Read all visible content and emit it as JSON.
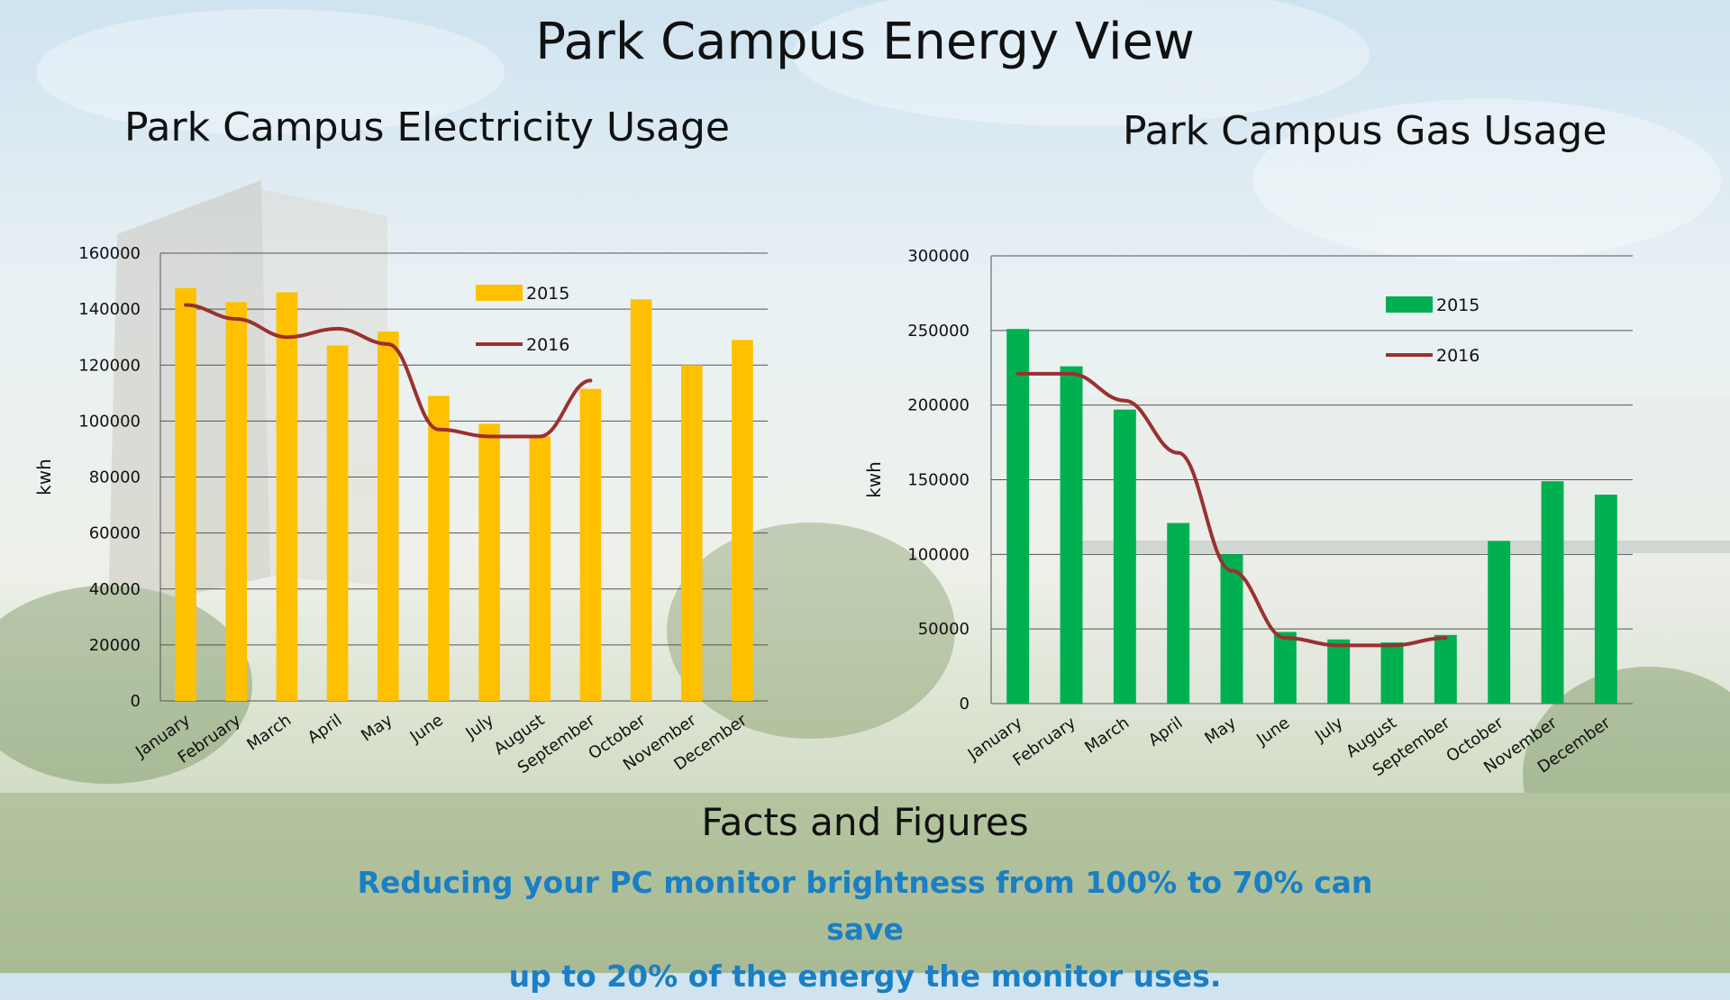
{
  "page_title": "Park Campus Energy View",
  "colors": {
    "electricity_2015": "#ffc000",
    "gas_2015": "#00b050",
    "line_2016": "#9b3030",
    "facts_text": "#1a7fc4"
  },
  "chart_data": [
    {
      "id": "electricity",
      "type": "bar",
      "title": "Park Campus Electricity Usage",
      "xlabel": "",
      "ylabel": "kwh",
      "ylim": [
        0,
        160000
      ],
      "yticks": [
        0,
        20000,
        40000,
        60000,
        80000,
        100000,
        120000,
        140000,
        160000
      ],
      "grid": true,
      "legend": "top-right",
      "categories": [
        "January",
        "February",
        "March",
        "April",
        "May",
        "June",
        "July",
        "August",
        "September",
        "October",
        "November",
        "December"
      ],
      "series": [
        {
          "name": "2015",
          "type": "bar",
          "color": "#ffc000",
          "values": [
            147500,
            142500,
            146000,
            127000,
            132000,
            109000,
            99000,
            94500,
            111500,
            143500,
            120000,
            129000
          ]
        },
        {
          "name": "2016",
          "type": "line",
          "color": "#9b3030",
          "values": [
            141500,
            136500,
            130000,
            133000,
            127500,
            97000,
            94500,
            94500,
            114500,
            null,
            null,
            null
          ]
        }
      ]
    },
    {
      "id": "gas",
      "type": "bar",
      "title": "Park Campus Gas Usage",
      "xlabel": "",
      "ylabel": "kwh",
      "ylim": [
        0,
        300000
      ],
      "yticks": [
        0,
        50000,
        100000,
        150000,
        200000,
        250000,
        300000
      ],
      "grid": true,
      "legend": "top-right",
      "categories": [
        "January",
        "February",
        "March",
        "April",
        "May",
        "June",
        "July",
        "August",
        "September",
        "October",
        "November",
        "December"
      ],
      "series": [
        {
          "name": "2015",
          "type": "bar",
          "color": "#00b050",
          "values": [
            251000,
            226000,
            197000,
            121000,
            100000,
            48000,
            43000,
            41000,
            46000,
            109000,
            149000,
            140000
          ]
        },
        {
          "name": "2016",
          "type": "line",
          "color": "#9b3030",
          "values": [
            221000,
            221000,
            203000,
            168000,
            89000,
            44000,
            39000,
            39000,
            44000,
            null,
            null,
            null
          ]
        }
      ]
    }
  ],
  "facts": {
    "heading": "Facts and Figures",
    "line1": "Reducing your PC monitor brightness from 100% to 70% can save",
    "line2": "up to 20% of the energy the monitor uses."
  }
}
